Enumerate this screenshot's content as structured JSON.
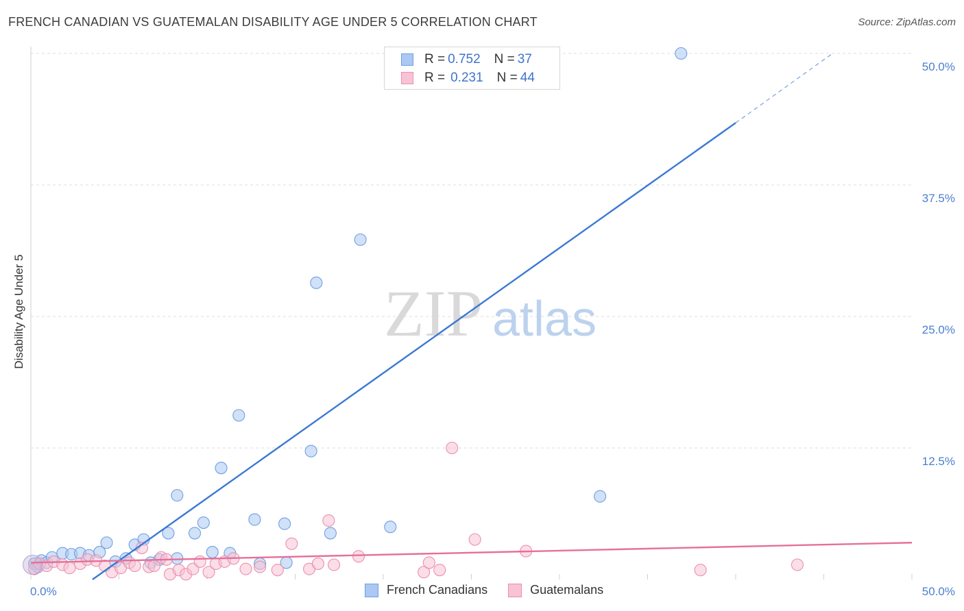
{
  "title": "FRENCH CANADIAN VS GUATEMALAN DISABILITY AGE UNDER 5 CORRELATION CHART",
  "source": "Source: ZipAtlas.com",
  "watermark": {
    "part1": "ZIP",
    "part2": "atlas"
  },
  "legend": {
    "rows": [
      {
        "r_label": "R = ",
        "r_value": "0.752",
        "n_label": "N = ",
        "n_value": "37",
        "color": "#aac8f2",
        "border": "#6f9fe0"
      },
      {
        "r_label": "R = ",
        "r_value": "0.231",
        "n_label": "N = ",
        "n_value": "44",
        "color": "#f8c3d4",
        "border": "#ea8fae"
      }
    ]
  },
  "bottom_legend": [
    {
      "label": "French Canadians",
      "color": "#aac8f2",
      "border": "#6f9fe0"
    },
    {
      "label": "Guatemalans",
      "color": "#f8c3d4",
      "border": "#ea8fae"
    }
  ],
  "chart_data": {
    "type": "scatter",
    "title": "FRENCH CANADIAN VS GUATEMALAN DISABILITY AGE UNDER 5 CORRELATION CHART",
    "xlabel": "",
    "ylabel": "Disability Age Under 5",
    "xlim": [
      0,
      50
    ],
    "ylim": [
      0,
      50
    ],
    "x_tick_labels": [
      "0.0%",
      "50.0%"
    ],
    "y_ticks": [
      12.5,
      25.0,
      37.5,
      50.0
    ],
    "y_tick_labels": [
      "12.5%",
      "25.0%",
      "37.5%",
      "50.0%"
    ],
    "series": [
      {
        "name": "French Canadians",
        "color": "#6f9fe0",
        "fill": "#aac8f2",
        "line_color": "#3a78d4",
        "trend": {
          "x_start": 3.5,
          "y_start": 0,
          "x_solid_end": 40,
          "y_solid_end": 43.4,
          "x_dash_end": 45.5,
          "y_dash_end": 50.0
        },
        "points": [
          [
            0.2,
            1.5
          ],
          [
            0.4,
            1.2
          ],
          [
            0.6,
            1.8
          ],
          [
            0.9,
            1.6
          ],
          [
            1.2,
            2.1
          ],
          [
            1.8,
            2.5
          ],
          [
            2.3,
            2.4
          ],
          [
            2.8,
            2.5
          ],
          [
            3.3,
            2.3
          ],
          [
            3.9,
            2.6
          ],
          [
            4.3,
            3.5
          ],
          [
            4.8,
            1.7
          ],
          [
            5.4,
            2.0
          ],
          [
            5.9,
            3.3
          ],
          [
            6.4,
            3.8
          ],
          [
            6.8,
            1.6
          ],
          [
            7.3,
            1.9
          ],
          [
            7.8,
            4.4
          ],
          [
            8.3,
            8.0
          ],
          [
            8.3,
            2.0
          ],
          [
            9.3,
            4.4
          ],
          [
            9.8,
            5.4
          ],
          [
            10.3,
            2.6
          ],
          [
            10.8,
            10.6
          ],
          [
            11.3,
            2.5
          ],
          [
            11.8,
            15.6
          ],
          [
            12.7,
            5.7
          ],
          [
            13.0,
            1.5
          ],
          [
            14.4,
            5.3
          ],
          [
            14.5,
            1.6
          ],
          [
            15.9,
            12.2
          ],
          [
            16.2,
            28.2
          ],
          [
            17.0,
            4.4
          ],
          [
            18.7,
            32.3
          ],
          [
            20.4,
            5.0
          ],
          [
            32.3,
            7.9
          ],
          [
            36.9,
            50.0
          ]
        ]
      },
      {
        "name": "Guatemalans",
        "color": "#ea8fae",
        "fill": "#f8c3d4",
        "line_color": "#e66f99",
        "trend": {
          "x_start": 0,
          "y_start": 1.6,
          "x_solid_end": 50,
          "y_solid_end": 3.5
        },
        "points": [
          [
            0.2,
            1.0
          ],
          [
            0.5,
            1.5
          ],
          [
            0.9,
            1.3
          ],
          [
            1.3,
            1.7
          ],
          [
            1.8,
            1.4
          ],
          [
            2.2,
            1.1
          ],
          [
            2.8,
            1.5
          ],
          [
            3.2,
            1.9
          ],
          [
            3.7,
            1.8
          ],
          [
            4.2,
            1.3
          ],
          [
            4.6,
            0.7
          ],
          [
            5.1,
            1.1
          ],
          [
            5.6,
            1.6
          ],
          [
            5.9,
            1.3
          ],
          [
            6.3,
            3.0
          ],
          [
            6.7,
            1.2
          ],
          [
            7.0,
            1.3
          ],
          [
            7.4,
            2.1
          ],
          [
            7.7,
            1.9
          ],
          [
            7.9,
            0.5
          ],
          [
            8.4,
            0.9
          ],
          [
            8.8,
            0.5
          ],
          [
            9.2,
            1.0
          ],
          [
            9.6,
            1.7
          ],
          [
            10.1,
            0.7
          ],
          [
            10.5,
            1.5
          ],
          [
            11.0,
            1.7
          ],
          [
            11.5,
            2.0
          ],
          [
            12.2,
            1.0
          ],
          [
            13.0,
            1.2
          ],
          [
            14.0,
            0.9
          ],
          [
            14.8,
            3.4
          ],
          [
            15.8,
            1.0
          ],
          [
            16.3,
            1.5
          ],
          [
            16.9,
            5.6
          ],
          [
            17.2,
            1.4
          ],
          [
            18.6,
            2.2
          ],
          [
            22.3,
            0.7
          ],
          [
            22.6,
            1.6
          ],
          [
            23.2,
            0.9
          ],
          [
            23.9,
            12.5
          ],
          [
            25.2,
            3.8
          ],
          [
            28.1,
            2.7
          ],
          [
            38.0,
            0.9
          ],
          [
            43.5,
            1.4
          ]
        ]
      }
    ]
  }
}
